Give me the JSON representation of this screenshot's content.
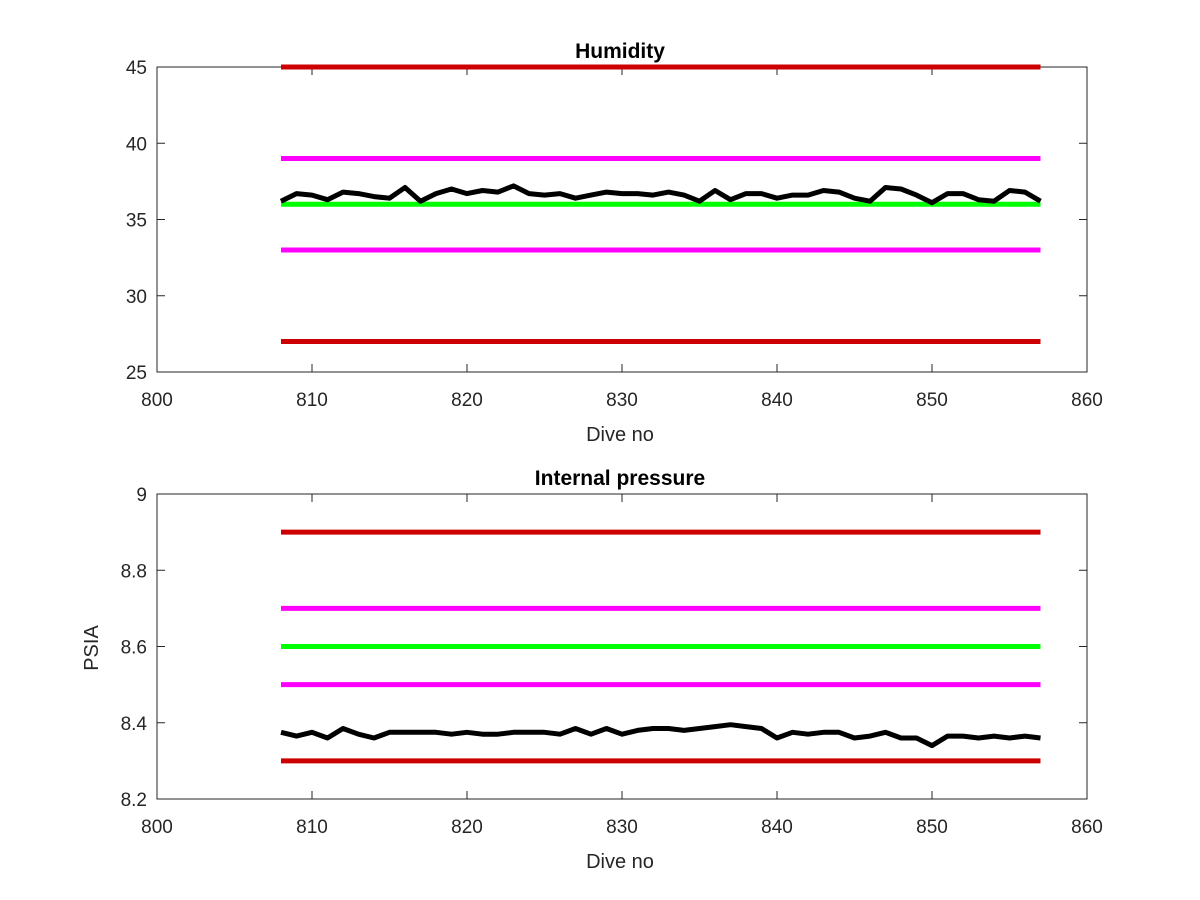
{
  "chart_data": [
    {
      "type": "line",
      "title": "Humidity",
      "xlabel": "Dive no",
      "ylabel": "",
      "xlim": [
        800,
        860
      ],
      "ylim": [
        25,
        45
      ],
      "xticks": [
        800,
        810,
        820,
        830,
        840,
        850,
        860
      ],
      "yticks": [
        25,
        30,
        35,
        40,
        45
      ],
      "grid": false,
      "legend": "none",
      "series": [
        {
          "color": "#cc0000",
          "x": [
            808,
            857
          ],
          "y": [
            45,
            45
          ]
        },
        {
          "color": "#ff00ff",
          "x": [
            808,
            857
          ],
          "y": [
            39,
            39
          ]
        },
        {
          "color": "#00ff00",
          "x": [
            808,
            857
          ],
          "y": [
            36,
            36
          ]
        },
        {
          "color": "#ff00ff",
          "x": [
            808,
            857
          ],
          "y": [
            33,
            33
          ]
        },
        {
          "color": "#cc0000",
          "x": [
            808,
            857
          ],
          "y": [
            27,
            27
          ]
        },
        {
          "color": "#000000",
          "x": [
            808,
            809,
            810,
            811,
            812,
            813,
            814,
            815,
            816,
            817,
            818,
            819,
            820,
            821,
            822,
            823,
            824,
            825,
            826,
            827,
            828,
            829,
            830,
            831,
            832,
            833,
            834,
            835,
            836,
            837,
            838,
            839,
            840,
            841,
            842,
            843,
            844,
            845,
            846,
            847,
            848,
            849,
            850,
            851,
            852,
            853,
            854,
            855,
            856,
            857
          ],
          "y": [
            36.2,
            36.7,
            36.6,
            36.3,
            36.8,
            36.7,
            36.5,
            36.4,
            37.1,
            36.2,
            36.7,
            37.0,
            36.7,
            36.9,
            36.8,
            37.2,
            36.7,
            36.6,
            36.7,
            36.4,
            36.6,
            36.8,
            36.7,
            36.7,
            36.6,
            36.8,
            36.6,
            36.2,
            36.9,
            36.3,
            36.7,
            36.7,
            36.4,
            36.6,
            36.6,
            36.9,
            36.8,
            36.4,
            36.2,
            37.1,
            37.0,
            36.6,
            36.1,
            36.7,
            36.7,
            36.3,
            36.2,
            36.9,
            36.8,
            36.2
          ]
        }
      ]
    },
    {
      "type": "line",
      "title": "Internal pressure",
      "xlabel": "Dive no",
      "ylabel": "PSIA",
      "xlim": [
        800,
        860
      ],
      "ylim": [
        8.2,
        9.0
      ],
      "xticks": [
        800,
        810,
        820,
        830,
        840,
        850,
        860
      ],
      "yticks": [
        "8.2",
        "8.4",
        "8.6",
        "8.8",
        "9"
      ],
      "grid": false,
      "legend": "none",
      "series": [
        {
          "color": "#cc0000",
          "x": [
            808,
            857
          ],
          "y": [
            8.9,
            8.9
          ]
        },
        {
          "color": "#ff00ff",
          "x": [
            808,
            857
          ],
          "y": [
            8.7,
            8.7
          ]
        },
        {
          "color": "#00ff00",
          "x": [
            808,
            857
          ],
          "y": [
            8.6,
            8.6
          ]
        },
        {
          "color": "#ff00ff",
          "x": [
            808,
            857
          ],
          "y": [
            8.5,
            8.5
          ]
        },
        {
          "color": "#cc0000",
          "x": [
            808,
            857
          ],
          "y": [
            8.3,
            8.3
          ]
        },
        {
          "color": "#000000",
          "x": [
            808,
            809,
            810,
            811,
            812,
            813,
            814,
            815,
            816,
            817,
            818,
            819,
            820,
            821,
            822,
            823,
            824,
            825,
            826,
            827,
            828,
            829,
            830,
            831,
            832,
            833,
            834,
            835,
            836,
            837,
            838,
            839,
            840,
            841,
            842,
            843,
            844,
            845,
            846,
            847,
            848,
            849,
            850,
            851,
            852,
            853,
            854,
            855,
            856,
            857
          ],
          "y": [
            8.375,
            8.365,
            8.375,
            8.36,
            8.385,
            8.37,
            8.36,
            8.375,
            8.375,
            8.375,
            8.375,
            8.37,
            8.375,
            8.37,
            8.37,
            8.375,
            8.375,
            8.375,
            8.37,
            8.385,
            8.37,
            8.385,
            8.37,
            8.38,
            8.385,
            8.385,
            8.38,
            8.385,
            8.39,
            8.395,
            8.39,
            8.385,
            8.36,
            8.375,
            8.37,
            8.375,
            8.375,
            8.36,
            8.365,
            8.375,
            8.36,
            8.36,
            8.34,
            8.365,
            8.365,
            8.36,
            8.365,
            8.36,
            8.365,
            8.36
          ]
        }
      ]
    }
  ]
}
